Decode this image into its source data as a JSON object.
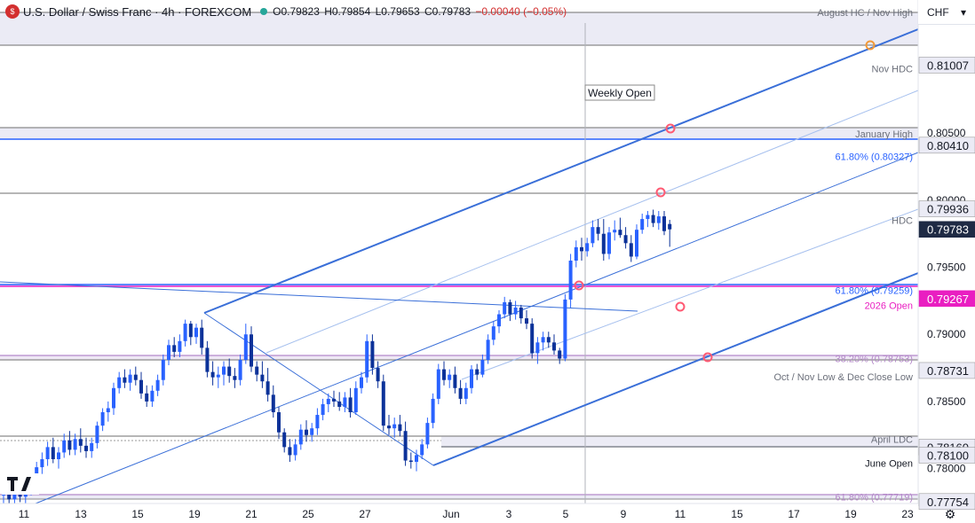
{
  "header": {
    "symbol": "U.S. Dollar / Swiss Franc · 4h · FOREXCOM",
    "icon_label": "$",
    "open": "O0.79823",
    "high": "H0.79854",
    "low": "L0.79653",
    "close": "C0.79783",
    "change": "−0.00040 (−0.05%)"
  },
  "currency_selector": {
    "label": "CHF",
    "icon": "chevron-down-icon"
  },
  "settings_icon": "gear-icon",
  "colors": {
    "up": "#2962ff",
    "down": "#0c3299",
    "channel": "#3a6fd8",
    "channel_light": "#a6c0ee",
    "magenta": "#e91ec1",
    "purple_fib": "#b489c9",
    "blue_fib": "#2962ff",
    "zone_fill": "#ebebf5",
    "gray_line": "#8a8a8a",
    "dark_label": "#1e2a44",
    "highlight": "#ff5a73",
    "orange_marker": "#f29a3a"
  },
  "chart_data": {
    "type": "candlestick",
    "instrument": "USD/CHF",
    "timeframe": "4h",
    "ylim": [
      0.777,
      0.814
    ],
    "x_axis_labels": [
      "11",
      "13",
      "15",
      "19",
      "21",
      "25",
      "27",
      "Jun",
      "3",
      "5",
      "9",
      "11",
      "15",
      "17",
      "19",
      "23"
    ],
    "y_axis_ticks": [
      "0.80500",
      "0.80000",
      "0.79500",
      "0.79000",
      "0.78500",
      "0.78000"
    ],
    "price_labels": [
      {
        "text": "0.81007",
        "value": 0.81007,
        "style": "gray"
      },
      {
        "text": "0.80410",
        "value": 0.8041,
        "style": "gray"
      },
      {
        "text": "0.79936",
        "value": 0.79936,
        "style": "gray"
      },
      {
        "text": "0.79783",
        "value": 0.79783,
        "style": "dark"
      },
      {
        "text": "0.79267",
        "value": 0.79267,
        "style": "magenta"
      },
      {
        "text": "0.78731",
        "value": 0.78731,
        "style": "gray"
      },
      {
        "text": "0.78160",
        "value": 0.7816,
        "style": "gray"
      },
      {
        "text": "0.78100",
        "value": 0.781,
        "style": "gray"
      },
      {
        "text": "0.77754",
        "value": 0.77754,
        "style": "gray"
      }
    ],
    "annotations": [
      {
        "text": "August HC / Nov High",
        "value": 0.814,
        "color": "#6b6f7a"
      },
      {
        "text": "Nov HDC",
        "value": 0.8098,
        "color": "#6b6f7a"
      },
      {
        "text": "January High",
        "value": 0.80495,
        "color": "#6b6f7a"
      },
      {
        "text": "61.80% (0.80327)",
        "value": 0.80327,
        "color": "#2962ff"
      },
      {
        "text": "HDC",
        "value": 0.7985,
        "color": "#6b6f7a"
      },
      {
        "text": "61.80% (0.79259)",
        "value": 0.7933,
        "color": "#2962ff"
      },
      {
        "text": "2026 Open",
        "value": 0.79215,
        "color": "#e91ec1"
      },
      {
        "text": "38.20% (0.78753)",
        "value": 0.7882,
        "color": "#b489c9"
      },
      {
        "text": "Oct / Nov Low & Dec Close Low",
        "value": 0.78685,
        "color": "#6b6f7a"
      },
      {
        "text": "April LDC",
        "value": 0.7822,
        "color": "#6b6f7a"
      },
      {
        "text": "June Open",
        "value": 0.7804,
        "color": "#131722"
      },
      {
        "text": "61.80% (0.77719)",
        "value": 0.7779,
        "color": "#b489c9"
      }
    ],
    "weekly_open_label": "Weekly Open",
    "candles": [
      {
        "o": 0.778,
        "h": 0.779,
        "l": 0.7772,
        "c": 0.7785
      },
      {
        "o": 0.7785,
        "h": 0.7795,
        "l": 0.7774,
        "c": 0.7777
      },
      {
        "o": 0.7777,
        "h": 0.7788,
        "l": 0.777,
        "c": 0.7784
      },
      {
        "o": 0.7784,
        "h": 0.7792,
        "l": 0.7775,
        "c": 0.7779
      },
      {
        "o": 0.7779,
        "h": 0.779,
        "l": 0.7772,
        "c": 0.7786
      },
      {
        "o": 0.7786,
        "h": 0.7796,
        "l": 0.778,
        "c": 0.7792
      },
      {
        "o": 0.7792,
        "h": 0.7805,
        "l": 0.7788,
        "c": 0.7801
      },
      {
        "o": 0.7801,
        "h": 0.7812,
        "l": 0.7796,
        "c": 0.7807
      },
      {
        "o": 0.7807,
        "h": 0.782,
        "l": 0.7802,
        "c": 0.7816
      },
      {
        "o": 0.7816,
        "h": 0.7823,
        "l": 0.7804,
        "c": 0.7807
      },
      {
        "o": 0.7807,
        "h": 0.7816,
        "l": 0.78,
        "c": 0.7812
      },
      {
        "o": 0.7812,
        "h": 0.7826,
        "l": 0.7808,
        "c": 0.7821
      },
      {
        "o": 0.7821,
        "h": 0.7828,
        "l": 0.781,
        "c": 0.7814
      },
      {
        "o": 0.7814,
        "h": 0.7826,
        "l": 0.781,
        "c": 0.7822
      },
      {
        "o": 0.7822,
        "h": 0.783,
        "l": 0.7812,
        "c": 0.7817
      },
      {
        "o": 0.7817,
        "h": 0.7823,
        "l": 0.7808,
        "c": 0.7813
      },
      {
        "o": 0.7813,
        "h": 0.7823,
        "l": 0.7808,
        "c": 0.7819
      },
      {
        "o": 0.7819,
        "h": 0.7835,
        "l": 0.7815,
        "c": 0.7832
      },
      {
        "o": 0.7832,
        "h": 0.7845,
        "l": 0.7828,
        "c": 0.7842
      },
      {
        "o": 0.7842,
        "h": 0.785,
        "l": 0.7835,
        "c": 0.7845
      },
      {
        "o": 0.7845,
        "h": 0.7864,
        "l": 0.784,
        "c": 0.786
      },
      {
        "o": 0.786,
        "h": 0.7872,
        "l": 0.7856,
        "c": 0.7868
      },
      {
        "o": 0.7868,
        "h": 0.7874,
        "l": 0.786,
        "c": 0.7864
      },
      {
        "o": 0.7864,
        "h": 0.7874,
        "l": 0.7858,
        "c": 0.787
      },
      {
        "o": 0.787,
        "h": 0.7876,
        "l": 0.7862,
        "c": 0.7866
      },
      {
        "o": 0.7866,
        "h": 0.7872,
        "l": 0.7852,
        "c": 0.7856
      },
      {
        "o": 0.7856,
        "h": 0.7862,
        "l": 0.7846,
        "c": 0.785
      },
      {
        "o": 0.785,
        "h": 0.7862,
        "l": 0.7846,
        "c": 0.7858
      },
      {
        "o": 0.7858,
        "h": 0.787,
        "l": 0.7854,
        "c": 0.7866
      },
      {
        "o": 0.7866,
        "h": 0.7885,
        "l": 0.7862,
        "c": 0.7881
      },
      {
        "o": 0.7881,
        "h": 0.7896,
        "l": 0.7877,
        "c": 0.7892
      },
      {
        "o": 0.7892,
        "h": 0.7898,
        "l": 0.7883,
        "c": 0.7887
      },
      {
        "o": 0.7887,
        "h": 0.79,
        "l": 0.7883,
        "c": 0.7895
      },
      {
        "o": 0.7895,
        "h": 0.7911,
        "l": 0.7891,
        "c": 0.7908
      },
      {
        "o": 0.7908,
        "h": 0.791,
        "l": 0.7892,
        "c": 0.7898
      },
      {
        "o": 0.7898,
        "h": 0.7908,
        "l": 0.7893,
        "c": 0.7905
      },
      {
        "o": 0.7905,
        "h": 0.7911,
        "l": 0.7885,
        "c": 0.789
      },
      {
        "o": 0.789,
        "h": 0.7895,
        "l": 0.7868,
        "c": 0.7872
      },
      {
        "o": 0.7872,
        "h": 0.788,
        "l": 0.7862,
        "c": 0.7868
      },
      {
        "o": 0.7868,
        "h": 0.7876,
        "l": 0.786,
        "c": 0.787
      },
      {
        "o": 0.787,
        "h": 0.788,
        "l": 0.7862,
        "c": 0.7876
      },
      {
        "o": 0.7876,
        "h": 0.7882,
        "l": 0.7864,
        "c": 0.7869
      },
      {
        "o": 0.7869,
        "h": 0.7875,
        "l": 0.786,
        "c": 0.7866
      },
      {
        "o": 0.7866,
        "h": 0.7885,
        "l": 0.7862,
        "c": 0.7881
      },
      {
        "o": 0.7881,
        "h": 0.7908,
        "l": 0.7878,
        "c": 0.79
      },
      {
        "o": 0.79,
        "h": 0.7906,
        "l": 0.7872,
        "c": 0.7876
      },
      {
        "o": 0.7876,
        "h": 0.788,
        "l": 0.7865,
        "c": 0.787
      },
      {
        "o": 0.787,
        "h": 0.788,
        "l": 0.786,
        "c": 0.7865
      },
      {
        "o": 0.7865,
        "h": 0.7875,
        "l": 0.785,
        "c": 0.7855
      },
      {
        "o": 0.7855,
        "h": 0.7862,
        "l": 0.7838,
        "c": 0.7842
      },
      {
        "o": 0.7842,
        "h": 0.7846,
        "l": 0.7822,
        "c": 0.7827
      },
      {
        "o": 0.7827,
        "h": 0.783,
        "l": 0.7812,
        "c": 0.7816
      },
      {
        "o": 0.7816,
        "h": 0.7822,
        "l": 0.7805,
        "c": 0.781
      },
      {
        "o": 0.781,
        "h": 0.7822,
        "l": 0.7806,
        "c": 0.7818
      },
      {
        "o": 0.7818,
        "h": 0.7833,
        "l": 0.7814,
        "c": 0.7829
      },
      {
        "o": 0.7829,
        "h": 0.7836,
        "l": 0.782,
        "c": 0.7825
      },
      {
        "o": 0.7825,
        "h": 0.7834,
        "l": 0.782,
        "c": 0.783
      },
      {
        "o": 0.783,
        "h": 0.7845,
        "l": 0.7825,
        "c": 0.784
      },
      {
        "o": 0.784,
        "h": 0.7852,
        "l": 0.7836,
        "c": 0.7848
      },
      {
        "o": 0.7848,
        "h": 0.7856,
        "l": 0.7842,
        "c": 0.7852
      },
      {
        "o": 0.7852,
        "h": 0.7858,
        "l": 0.7846,
        "c": 0.785
      },
      {
        "o": 0.785,
        "h": 0.7857,
        "l": 0.7843,
        "c": 0.7846
      },
      {
        "o": 0.7846,
        "h": 0.7857,
        "l": 0.7842,
        "c": 0.7853
      },
      {
        "o": 0.7853,
        "h": 0.786,
        "l": 0.7838,
        "c": 0.7842
      },
      {
        "o": 0.7842,
        "h": 0.7865,
        "l": 0.784,
        "c": 0.786
      },
      {
        "o": 0.786,
        "h": 0.7872,
        "l": 0.7856,
        "c": 0.7868
      },
      {
        "o": 0.7868,
        "h": 0.79,
        "l": 0.7864,
        "c": 0.7895
      },
      {
        "o": 0.7895,
        "h": 0.79,
        "l": 0.787,
        "c": 0.7875
      },
      {
        "o": 0.7875,
        "h": 0.788,
        "l": 0.786,
        "c": 0.7865
      },
      {
        "o": 0.7865,
        "h": 0.787,
        "l": 0.7828,
        "c": 0.7832
      },
      {
        "o": 0.7832,
        "h": 0.784,
        "l": 0.7825,
        "c": 0.783
      },
      {
        "o": 0.783,
        "h": 0.7838,
        "l": 0.7823,
        "c": 0.7833
      },
      {
        "o": 0.7833,
        "h": 0.784,
        "l": 0.7824,
        "c": 0.7828
      },
      {
        "o": 0.7828,
        "h": 0.7835,
        "l": 0.7802,
        "c": 0.7806
      },
      {
        "o": 0.7806,
        "h": 0.7812,
        "l": 0.78,
        "c": 0.7805
      },
      {
        "o": 0.7805,
        "h": 0.7814,
        "l": 0.7798,
        "c": 0.781
      },
      {
        "o": 0.781,
        "h": 0.7822,
        "l": 0.7807,
        "c": 0.7818
      },
      {
        "o": 0.7818,
        "h": 0.7838,
        "l": 0.7815,
        "c": 0.7834
      },
      {
        "o": 0.7834,
        "h": 0.7856,
        "l": 0.783,
        "c": 0.7852
      },
      {
        "o": 0.7852,
        "h": 0.7878,
        "l": 0.7848,
        "c": 0.7874
      },
      {
        "o": 0.7874,
        "h": 0.788,
        "l": 0.7862,
        "c": 0.7866
      },
      {
        "o": 0.7866,
        "h": 0.7874,
        "l": 0.786,
        "c": 0.787
      },
      {
        "o": 0.787,
        "h": 0.7876,
        "l": 0.7856,
        "c": 0.786
      },
      {
        "o": 0.786,
        "h": 0.7866,
        "l": 0.7848,
        "c": 0.7852
      },
      {
        "o": 0.7852,
        "h": 0.7864,
        "l": 0.7848,
        "c": 0.786
      },
      {
        "o": 0.786,
        "h": 0.7877,
        "l": 0.7856,
        "c": 0.7874
      },
      {
        "o": 0.7874,
        "h": 0.7878,
        "l": 0.7866,
        "c": 0.787
      },
      {
        "o": 0.787,
        "h": 0.7885,
        "l": 0.7868,
        "c": 0.7881
      },
      {
        "o": 0.7881,
        "h": 0.79,
        "l": 0.7878,
        "c": 0.7896
      },
      {
        "o": 0.7896,
        "h": 0.791,
        "l": 0.7892,
        "c": 0.7906
      },
      {
        "o": 0.7906,
        "h": 0.7918,
        "l": 0.7901,
        "c": 0.7915
      },
      {
        "o": 0.7915,
        "h": 0.7928,
        "l": 0.7912,
        "c": 0.7924
      },
      {
        "o": 0.7924,
        "h": 0.7926,
        "l": 0.791,
        "c": 0.7915
      },
      {
        "o": 0.7915,
        "h": 0.7925,
        "l": 0.7911,
        "c": 0.792
      },
      {
        "o": 0.792,
        "h": 0.7922,
        "l": 0.7908,
        "c": 0.7912
      },
      {
        "o": 0.7912,
        "h": 0.7918,
        "l": 0.7904,
        "c": 0.7908
      },
      {
        "o": 0.7908,
        "h": 0.7912,
        "l": 0.7882,
        "c": 0.7886
      },
      {
        "o": 0.7886,
        "h": 0.7898,
        "l": 0.7878,
        "c": 0.7894
      },
      {
        "o": 0.7894,
        "h": 0.7902,
        "l": 0.7888,
        "c": 0.7898
      },
      {
        "o": 0.7898,
        "h": 0.7902,
        "l": 0.789,
        "c": 0.7894
      },
      {
        "o": 0.7894,
        "h": 0.79,
        "l": 0.7885,
        "c": 0.7888
      },
      {
        "o": 0.7888,
        "h": 0.789,
        "l": 0.7878,
        "c": 0.7882
      },
      {
        "o": 0.7882,
        "h": 0.793,
        "l": 0.788,
        "c": 0.7926
      },
      {
        "o": 0.7926,
        "h": 0.796,
        "l": 0.792,
        "c": 0.7955
      },
      {
        "o": 0.7955,
        "h": 0.797,
        "l": 0.795,
        "c": 0.7965
      },
      {
        "o": 0.7965,
        "h": 0.7972,
        "l": 0.7955,
        "c": 0.7962
      },
      {
        "o": 0.7962,
        "h": 0.7972,
        "l": 0.7958,
        "c": 0.7968
      },
      {
        "o": 0.7968,
        "h": 0.7985,
        "l": 0.7965,
        "c": 0.798
      },
      {
        "o": 0.798,
        "h": 0.7986,
        "l": 0.797,
        "c": 0.7975
      },
      {
        "o": 0.7975,
        "h": 0.7986,
        "l": 0.7955,
        "c": 0.796
      },
      {
        "o": 0.796,
        "h": 0.798,
        "l": 0.7956,
        "c": 0.7976
      },
      {
        "o": 0.7976,
        "h": 0.7985,
        "l": 0.797,
        "c": 0.7978
      },
      {
        "o": 0.7978,
        "h": 0.7987,
        "l": 0.7972,
        "c": 0.7974
      },
      {
        "o": 0.7974,
        "h": 0.798,
        "l": 0.7964,
        "c": 0.7968
      },
      {
        "o": 0.7968,
        "h": 0.7974,
        "l": 0.7954,
        "c": 0.7958
      },
      {
        "o": 0.7958,
        "h": 0.7982,
        "l": 0.7956,
        "c": 0.7978
      },
      {
        "o": 0.7978,
        "h": 0.799,
        "l": 0.7975,
        "c": 0.7986
      },
      {
        "o": 0.7986,
        "h": 0.7992,
        "l": 0.798,
        "c": 0.7989
      },
      {
        "o": 0.7989,
        "h": 0.7993,
        "l": 0.798,
        "c": 0.7983
      },
      {
        "o": 0.7983,
        "h": 0.7992,
        "l": 0.7978,
        "c": 0.7988
      },
      {
        "o": 0.7988,
        "h": 0.7992,
        "l": 0.7974,
        "c": 0.7977
      },
      {
        "o": 0.79823,
        "h": 0.79854,
        "l": 0.79653,
        "c": 0.79783
      }
    ]
  }
}
